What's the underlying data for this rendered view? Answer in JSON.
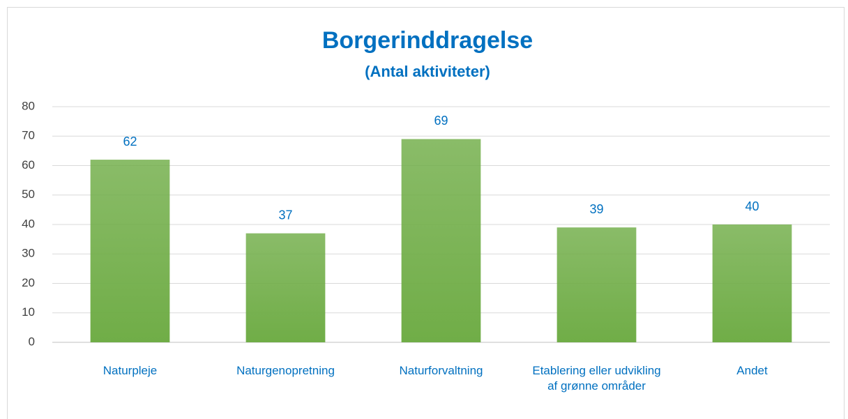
{
  "chart_data": {
    "type": "bar",
    "title": "Borgerinddragelse",
    "subtitle": "(Antal aktiviteter)",
    "categories": [
      "Naturpleje",
      "Naturgenopretning",
      "Naturforvaltning",
      "Etablering eller udvikling af grønne områder",
      "Andet"
    ],
    "values": [
      62,
      37,
      69,
      39,
      40
    ],
    "color": "#70ad47",
    "ylim": [
      0,
      80
    ],
    "yticks": [
      0,
      10,
      20,
      30,
      40,
      50,
      60,
      70,
      80
    ],
    "grid": true
  }
}
